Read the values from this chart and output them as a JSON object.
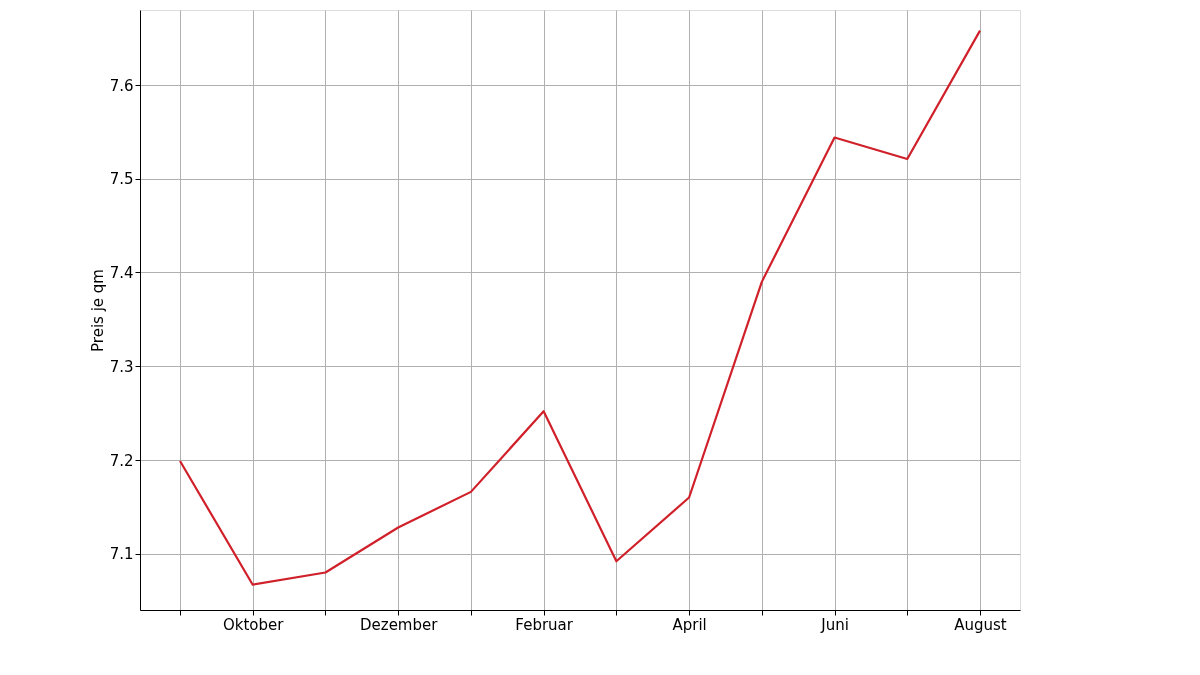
{
  "chart_data": {
    "type": "line",
    "ylabel": "Preis je qm",
    "categories": [
      null,
      "Oktober",
      null,
      "Dezember",
      null,
      "Februar",
      null,
      "April",
      null,
      "Juni",
      null,
      "August"
    ],
    "series": [
      {
        "color": "#d0202a",
        "values": [
          7.199,
          7.067,
          7.08,
          7.128,
          7.166,
          7.252,
          7.092,
          7.16,
          7.39,
          7.544,
          7.521,
          7.658
        ]
      }
    ],
    "ylim": [
      7.04,
      7.68
    ],
    "yticks": [
      7.1,
      7.2,
      7.3,
      7.4,
      7.5,
      7.6
    ],
    "grid": true,
    "marker": "none",
    "line_style": "solid"
  }
}
